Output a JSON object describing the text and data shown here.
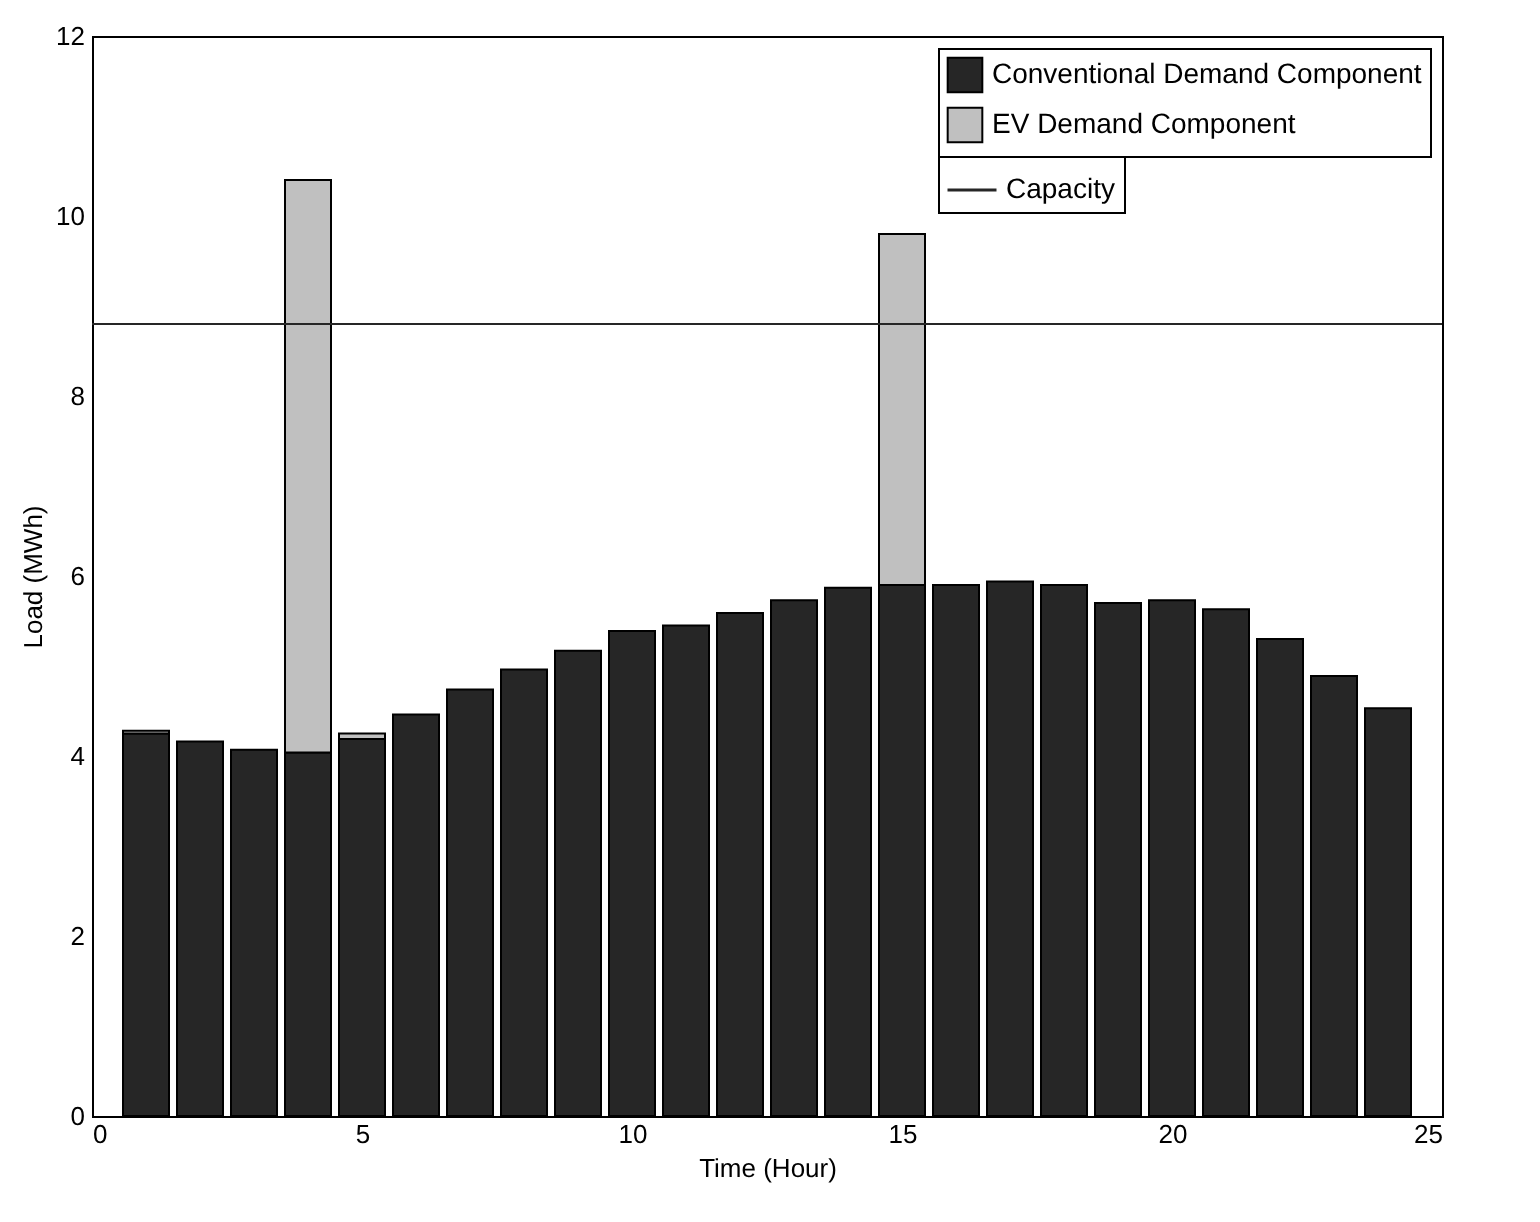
{
  "chart_data": {
    "type": "bar",
    "stacked": true,
    "xlabel": "Time (Hour)",
    "ylabel": "Load (MWh)",
    "x": [
      1,
      2,
      3,
      4,
      5,
      6,
      7,
      8,
      9,
      10,
      11,
      12,
      13,
      14,
      15,
      16,
      17,
      18,
      19,
      20,
      21,
      22,
      23,
      24
    ],
    "series": [
      {
        "name": "Conventional Demand Component",
        "color": "#262626",
        "values": [
          4.25,
          4.16,
          4.07,
          4.04,
          4.19,
          4.46,
          4.74,
          4.96,
          5.17,
          5.39,
          5.45,
          5.59,
          5.73,
          5.87,
          5.9,
          5.9,
          5.94,
          5.9,
          5.7,
          5.73,
          5.63,
          5.3,
          4.89,
          4.53
        ]
      },
      {
        "name": "EV Demand Component",
        "color": "#c0c0c0",
        "values": [
          0.03,
          null,
          null,
          6.36,
          0.06,
          null,
          null,
          null,
          null,
          null,
          null,
          null,
          null,
          null,
          3.9,
          null,
          null,
          null,
          null,
          null,
          null,
          null,
          null,
          null
        ]
      }
    ],
    "ref_lines": [
      {
        "axis": "y",
        "value": 8.8,
        "label": "Capacity",
        "color": "#262626"
      }
    ],
    "xlim": [
      0,
      25
    ],
    "xticks": [
      0,
      5,
      10,
      15,
      20,
      25
    ],
    "ylim": [
      0,
      12
    ],
    "yticks": [
      0,
      2,
      4,
      6,
      8,
      10,
      12
    ],
    "legend": "top right"
  }
}
